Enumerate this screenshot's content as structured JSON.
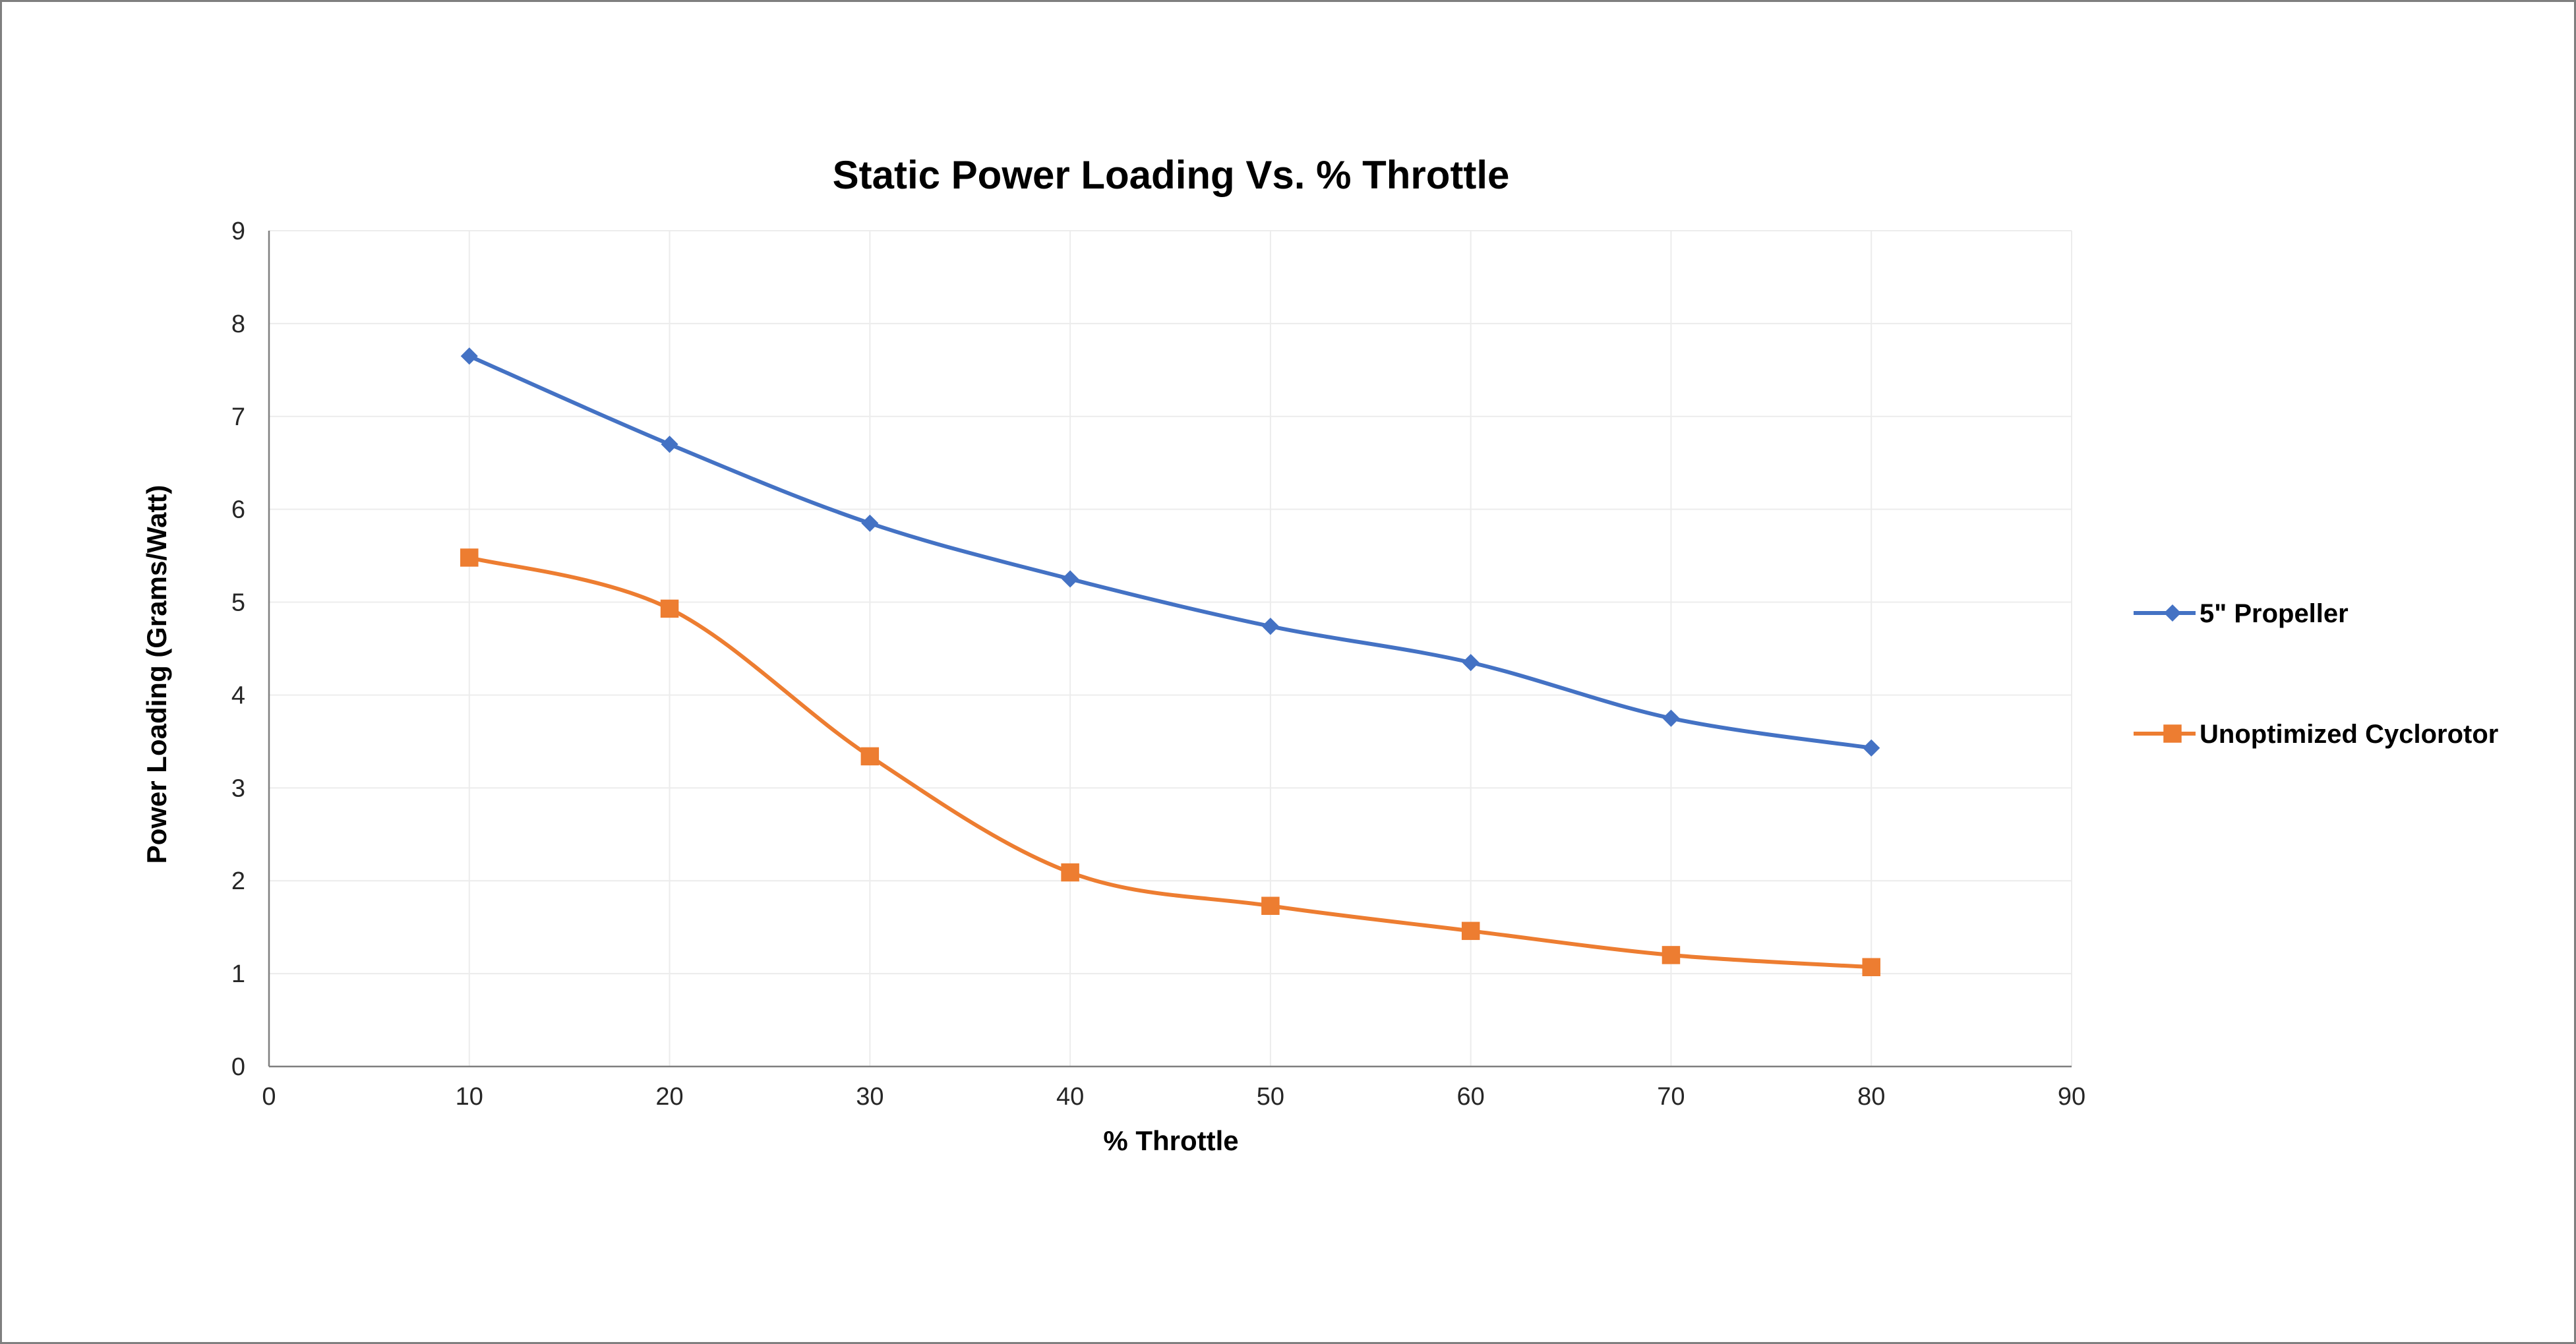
{
  "chart_data": {
    "type": "line",
    "title": "Static Power Loading Vs. % Throttle",
    "xlabel": "% Throttle",
    "ylabel": "Power Loading (Grams/Watt)",
    "xlim": [
      0,
      90
    ],
    "ylim": [
      0,
      9
    ],
    "xticks": [
      0,
      10,
      20,
      30,
      40,
      50,
      60,
      70,
      80,
      90
    ],
    "yticks": [
      0,
      1,
      2,
      3,
      4,
      5,
      6,
      7,
      8,
      9
    ],
    "grid": true,
    "legend_position": "right",
    "smooth": true,
    "x": [
      10,
      20,
      30,
      40,
      50,
      60,
      70,
      80
    ],
    "series": [
      {
        "name": "5\" Propeller",
        "values": [
          7.65,
          6.7,
          5.85,
          5.25,
          4.74,
          4.35,
          3.75,
          3.43
        ],
        "color": "#4472c4",
        "marker": "diamond"
      },
      {
        "name": "Unoptimized Cyclorotor",
        "values": [
          5.48,
          4.93,
          3.34,
          2.09,
          1.73,
          1.46,
          1.2,
          1.07
        ],
        "color": "#ed7d31",
        "marker": "square"
      }
    ]
  }
}
